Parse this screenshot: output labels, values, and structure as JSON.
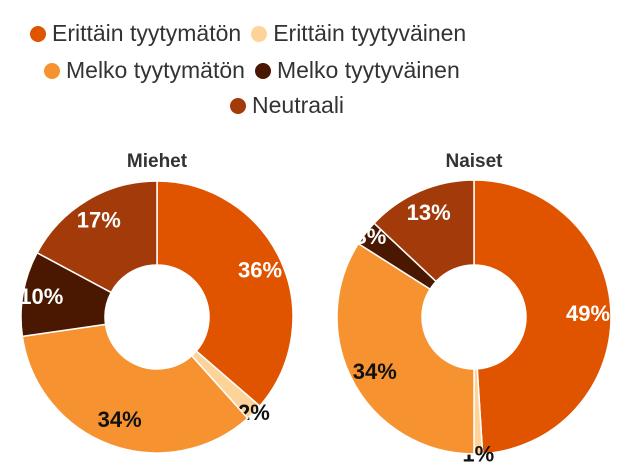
{
  "chart_data": {
    "type": "pie",
    "legend": {
      "position": "top",
      "entries": [
        {
          "name": "Erittäin tyytymätön",
          "color": "#E05400"
        },
        {
          "name": "Erittäin tyytyväinen",
          "color": "#FDD39A"
        },
        {
          "name": "Melko tyytymätön",
          "color": "#F79231"
        },
        {
          "name": "Melko tyytyväinen",
          "color": "#4A1800"
        },
        {
          "name": "Neutraali",
          "color": "#A33A0A"
        }
      ]
    },
    "charts": [
      {
        "title": "Miehet",
        "slices": [
          {
            "category": "Erittäin tyytymätön",
            "value": 36,
            "label": "36%"
          },
          {
            "category": "Erittäin tyytyväinen",
            "value": 2,
            "label": "2%"
          },
          {
            "category": "Melko tyytymätön",
            "value": 34,
            "label": "34%"
          },
          {
            "category": "Melko tyytyväinen",
            "value": 10,
            "label": "10%"
          },
          {
            "category": "Neutraali",
            "value": 17,
            "label": "17%"
          }
        ]
      },
      {
        "title": "Naiset",
        "slices": [
          {
            "category": "Erittäin tyytymätön",
            "value": 49,
            "label": "49%"
          },
          {
            "category": "Erittäin tyytyväinen",
            "value": 1,
            "label": "1%"
          },
          {
            "category": "Melko tyytymätön",
            "value": 34,
            "label": "34%"
          },
          {
            "category": "Melko tyytyväinen",
            "value": 3,
            "label": "3%"
          },
          {
            "category": "Neutraali",
            "value": 13,
            "label": "13%"
          }
        ]
      }
    ]
  }
}
